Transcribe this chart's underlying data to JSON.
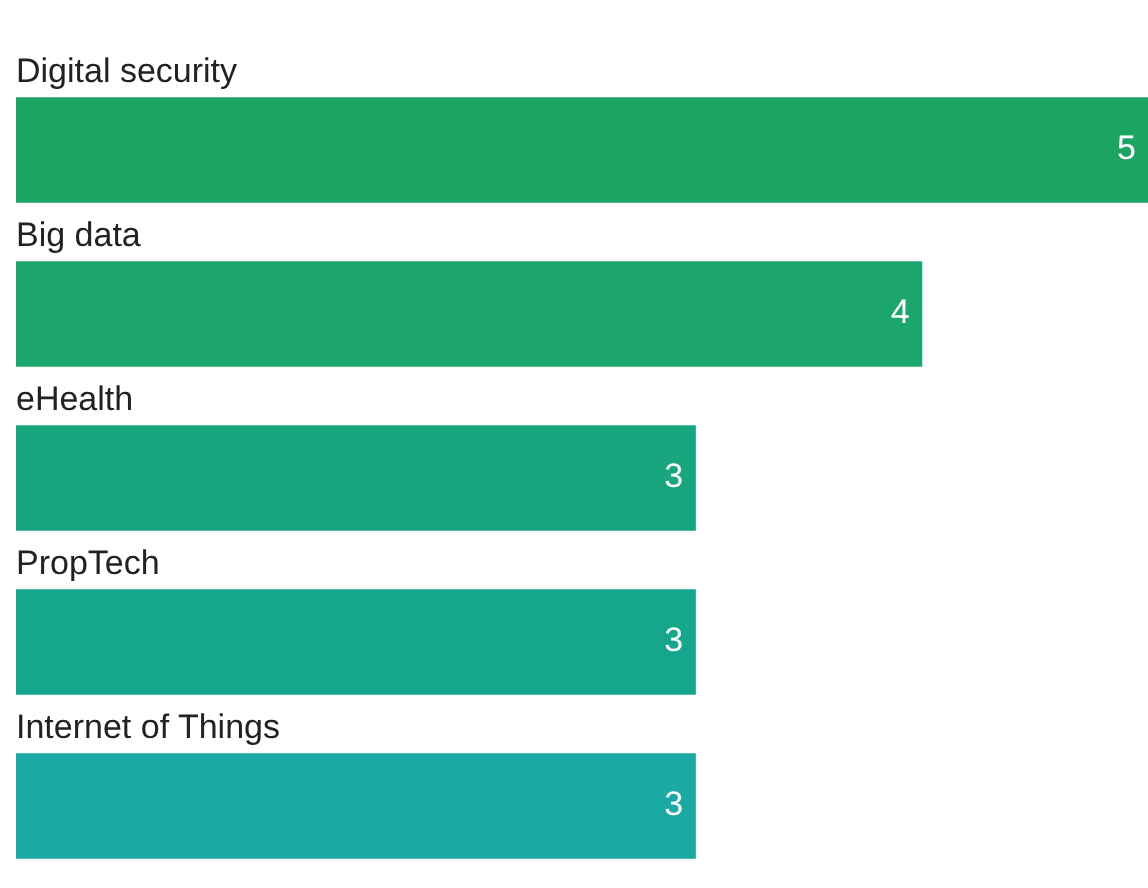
{
  "chart_data": {
    "type": "bar",
    "orientation": "horizontal",
    "categories": [
      "Digital security",
      "Big data",
      "eHealth",
      "PropTech",
      "Internet of Things"
    ],
    "values": [
      5,
      4,
      3,
      3,
      3
    ],
    "colors": [
      "#1ba462",
      "#1ca56c",
      "#19a57e",
      "#15a68c",
      "#1aa9a3"
    ],
    "data_labels": true
  }
}
